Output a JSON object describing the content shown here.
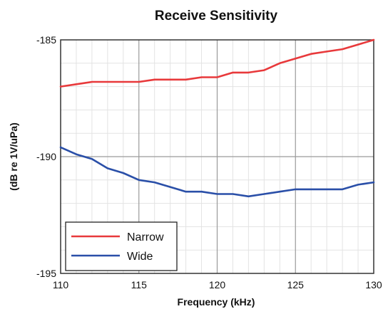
{
  "chart_data": {
    "type": "line",
    "title": "Receive Sensitivity",
    "xlabel": "Frequency (kHz)",
    "ylabel": "(dB re 1V/uPa)",
    "xlim": [
      110,
      130
    ],
    "ylim": [
      -195,
      -185
    ],
    "xticks": [
      110,
      115,
      120,
      125,
      130
    ],
    "xtick_labels": [
      "110",
      "115",
      "120",
      "125",
      "130"
    ],
    "yticks": [
      -185,
      -190,
      -195
    ],
    "ytick_labels": [
      "-185",
      "-190",
      "-195"
    ],
    "grid": true,
    "legend_position": "bottom-left",
    "series": [
      {
        "name": "Narrow",
        "color": "#e8393b",
        "x": [
          110,
          111,
          112,
          113,
          114,
          115,
          116,
          117,
          118,
          119,
          120,
          121,
          122,
          123,
          124,
          125,
          126,
          127,
          128,
          129,
          130
        ],
        "y": [
          -187.0,
          -186.9,
          -186.8,
          -186.8,
          -186.8,
          -186.8,
          -186.7,
          -186.7,
          -186.7,
          -186.6,
          -186.6,
          -186.4,
          -186.4,
          -186.3,
          -186.0,
          -185.8,
          -185.6,
          -185.5,
          -185.4,
          -185.2,
          -185.0
        ]
      },
      {
        "name": "Wide",
        "color": "#2a4fa8",
        "x": [
          110,
          111,
          112,
          113,
          114,
          115,
          116,
          117,
          118,
          119,
          120,
          121,
          122,
          123,
          124,
          125,
          126,
          127,
          128,
          129,
          130
        ],
        "y": [
          -189.6,
          -189.9,
          -190.1,
          -190.5,
          -190.7,
          -191.0,
          -191.1,
          -191.3,
          -191.5,
          -191.5,
          -191.6,
          -191.6,
          -191.7,
          -191.6,
          -191.5,
          -191.4,
          -191.4,
          -191.4,
          -191.4,
          -191.2,
          -191.1
        ]
      }
    ]
  }
}
